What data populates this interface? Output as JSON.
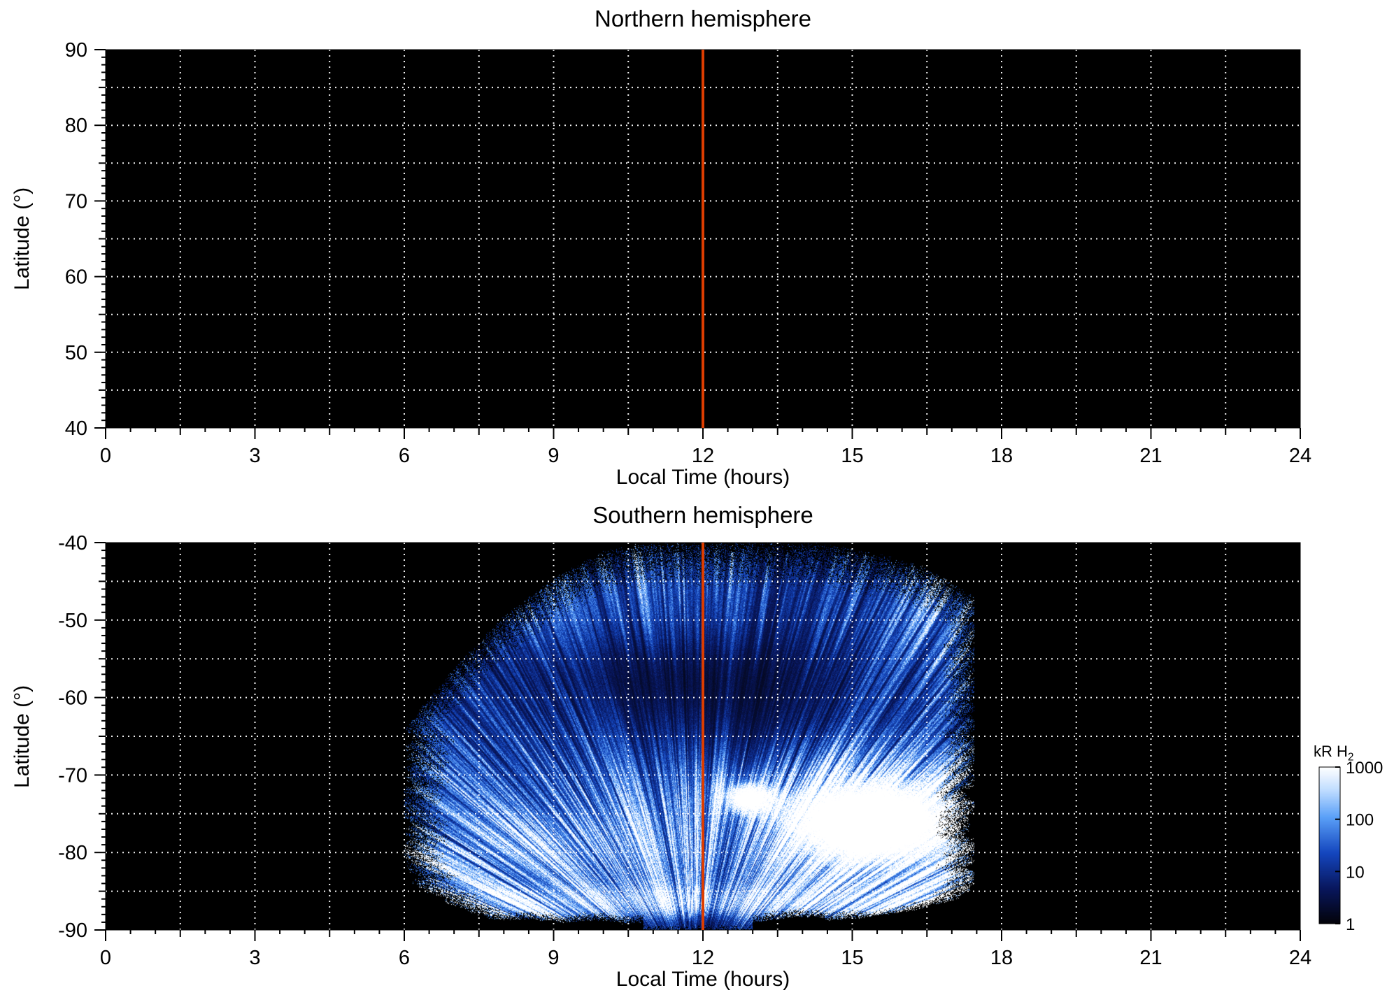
{
  "figure": {
    "background": "#ffffff",
    "noon_line": {
      "x_value": 12,
      "color": "#dd3d00",
      "width": 4
    }
  },
  "chart_data": [
    {
      "type": "heatmap",
      "title": "Northern hemisphere",
      "xlabel": "Local Time (hours)",
      "ylabel": "Latitude (°)",
      "xlim": [
        0,
        24
      ],
      "ylim": [
        40,
        90
      ],
      "xticks": [
        0,
        3,
        6,
        9,
        12,
        15,
        18,
        21,
        24
      ],
      "yticks": [
        40,
        50,
        60,
        70,
        80,
        90
      ],
      "x_grid_step": 1.5,
      "y_grid_step": 5,
      "background": "#000000",
      "grid": "white dotted every 1.5 h and 5 deg",
      "values": "no detectable H2 emission anywhere in the panel (all below 1 kR, entirely black); vertical noon marker line at 12 h"
    },
    {
      "type": "heatmap",
      "title": "Southern hemisphere",
      "xlabel": "Local Time (hours)",
      "ylabel": "Latitude (°)",
      "xlim": [
        0,
        24
      ],
      "ylim": [
        -90,
        -40
      ],
      "xticks": [
        0,
        3,
        6,
        9,
        12,
        15,
        18,
        21,
        24
      ],
      "yticks": [
        -40,
        -50,
        -60,
        -70,
        -80,
        -90
      ],
      "x_grid_step": 1.5,
      "y_grid_step": 5,
      "background": "#000000",
      "grid": "white dotted every 1.5 h and 5 deg",
      "colorbar": {
        "label_main": "kR H",
        "label_sub": "2",
        "scale": "log",
        "ticks": [
          1000,
          100,
          10,
          1
        ],
        "min": 1,
        "max": 1000
      },
      "emission_summary": "Streaky fan-shaped H2 emission confined to local times ~06:00–17:30. Upper-left boundary curves from (6 h, -64°) up to (10.8 h, -40°); right edge near 17.4 h. Moderately bright blue band near -40° to -50°, dark speckled zone around 10–14 h / -52° to -68°, bright white saturated patch (~1000 kR) around 13.5–17 h / -66° to -84°, bright streaks near the pole (-85° to -89°), black poleward of ~-89°. Noon marker line at 12 h.",
      "emission_model": {
        "region": {
          "lt_min": 6.0,
          "lt_max": 17.45,
          "upper_boundary": [
            [
              6.0,
              -64
            ],
            [
              7.0,
              -56
            ],
            [
              8.0,
              -49.5
            ],
            [
              9.0,
              -44.5
            ],
            [
              10.0,
              -41
            ],
            [
              10.8,
              -40
            ],
            [
              14.3,
              -40
            ],
            [
              15.5,
              -41.3
            ],
            [
              16.5,
              -43.2
            ],
            [
              17.45,
              -47
            ]
          ],
          "left_lower_curve": [
            [
              -80,
              6.0
            ],
            [
              -84,
              6.3
            ],
            [
              -86.5,
              6.9
            ],
            [
              -88.8,
              7.8
            ]
          ],
          "right_inner_curve": [
            [
              -85,
              17.45
            ],
            [
              -86,
              17.1
            ],
            [
              -87.5,
              16.3
            ],
            [
              -88.8,
              15.0
            ]
          ],
          "bottom_lat": -88.8,
          "bottom_notch": {
            "lt_center": 11.9,
            "lt_halfwidth": 1.1
          }
        },
        "base": {
          "L_top": 1.5,
          "L_slope": 0.55
        },
        "blobs": [
          {
            "lt": 15.4,
            "lat": -76,
            "sx": 1.7,
            "sy": 5.5,
            "amp": 2.8
          },
          {
            "lt": 12.85,
            "lat": -72.8,
            "sx": 0.45,
            "sy": 1.8,
            "amp": 1.7
          },
          {
            "lt": 8.6,
            "lat": -79,
            "sx": 1.9,
            "sy": 3.2,
            "amp": 0.85
          },
          {
            "lt": 11.5,
            "lat": -86.3,
            "sx": 4.6,
            "sy": 1.5,
            "amp": 1.15
          },
          {
            "lt": 17.1,
            "lat": -50,
            "sx": 0.5,
            "sy": 6.0,
            "amp": 0.5
          }
        ],
        "dark_patches": [
          {
            "lt": 11.5,
            "lat": -57,
            "sx": 3.0,
            "sy": 4.5,
            "amp": -1.05
          },
          {
            "lt": 12.8,
            "lat": -64.5,
            "sx": 3.4,
            "sy": 4.0,
            "amp": -0.65
          },
          {
            "lt": 11.9,
            "lat": -89.3,
            "sx": 1.2,
            "sy": 1.2,
            "amp": -1.2
          }
        ],
        "focus": {
          "lt": 11.8,
          "lat": -98
        },
        "streaks": {
          "f1": 260,
          "a1": 0.9,
          "b1": 0.5,
          "f2": 85,
          "a2": 0.68,
          "b2": 0.62,
          "rf": 0.012
        },
        "edge_fade_deg": 6,
        "grain": {
          "base": 0.72,
          "amp": 0.56
        },
        "solid_core": {
          "threshold": 1.4,
          "range": 0.9
        },
        "colormap_log_range": [
          1,
          1000
        ],
        "colormap": [
          {
            "t": 0.0,
            "rgb": [
              3,
              3,
              10
            ]
          },
          {
            "t": 0.22,
            "rgb": [
              8,
              22,
              92
            ]
          },
          {
            "t": 0.45,
            "rgb": [
              20,
              70,
              190
            ]
          },
          {
            "t": 0.68,
            "rgb": [
              90,
              160,
              248
            ]
          },
          {
            "t": 0.85,
            "rgb": [
              190,
              220,
              255
            ]
          },
          {
            "t": 1.0,
            "rgb": [
              255,
              255,
              255
            ]
          }
        ]
      }
    }
  ]
}
